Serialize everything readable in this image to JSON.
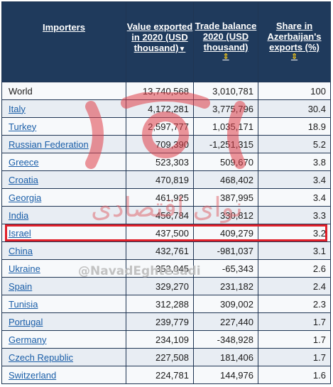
{
  "table": {
    "headers": {
      "importers": "Importers",
      "value": "Value exported in 2020 (USD thousand)",
      "value_arrow": "▼",
      "balance": "Trade balance 2020 (USD thousand)",
      "share": "Share in Azerbaijan's exports (%)"
    },
    "rows": [
      {
        "name": "World",
        "link": false,
        "value": "13,740,568",
        "balance": "3,010,781",
        "balance_negative": false,
        "share": "100"
      },
      {
        "name": "Italy",
        "link": true,
        "value": "4,172,281",
        "balance": "3,775,796",
        "balance_negative": false,
        "share": "30.4"
      },
      {
        "name": "Turkey",
        "link": true,
        "value": "2,597,777",
        "balance": "1,035,171",
        "balance_negative": false,
        "share": "18.9"
      },
      {
        "name": "Russian Federation",
        "link": true,
        "value": "709,390",
        "balance": "-1,251,315",
        "balance_negative": true,
        "share": "5.2"
      },
      {
        "name": "Greece",
        "link": true,
        "value": "523,303",
        "balance": "509,670",
        "balance_negative": false,
        "share": "3.8"
      },
      {
        "name": "Croatia",
        "link": true,
        "value": "470,819",
        "balance": "468,402",
        "balance_negative": false,
        "share": "3.4"
      },
      {
        "name": "Georgia",
        "link": true,
        "value": "461,925",
        "balance": "387,995",
        "balance_negative": false,
        "share": "3.4"
      },
      {
        "name": "India",
        "link": true,
        "value": "456,784",
        "balance": "330,812",
        "balance_negative": false,
        "share": "3.3"
      },
      {
        "name": "Israel",
        "link": true,
        "value": "437,500",
        "balance": "409,279",
        "balance_negative": false,
        "share": "3.2"
      },
      {
        "name": "China",
        "link": true,
        "value": "432,761",
        "balance": "-981,037",
        "balance_negative": true,
        "share": "3.1"
      },
      {
        "name": "Ukraine",
        "link": true,
        "value": "353,045",
        "balance": "-65,343",
        "balance_negative": true,
        "share": "2.6"
      },
      {
        "name": "Spain",
        "link": true,
        "value": "329,270",
        "balance": "231,182",
        "balance_negative": false,
        "share": "2.4"
      },
      {
        "name": "Tunisia",
        "link": true,
        "value": "312,288",
        "balance": "309,002",
        "balance_negative": false,
        "share": "2.3"
      },
      {
        "name": "Portugal",
        "link": true,
        "value": "239,779",
        "balance": "227,440",
        "balance_negative": false,
        "share": "1.7"
      },
      {
        "name": "Germany",
        "link": true,
        "value": "234,109",
        "balance": "-348,928",
        "balance_negative": true,
        "share": "1.7"
      },
      {
        "name": "Czech Republic",
        "link": true,
        "value": "227,508",
        "balance": "181,406",
        "balance_negative": false,
        "share": "1.7"
      },
      {
        "name": "Switzerland",
        "link": true,
        "value": "224,781",
        "balance": "144,976",
        "balance_negative": false,
        "share": "1.6"
      }
    ],
    "highlighted_row": "Israel"
  },
  "watermark": {
    "handle": "@NavadEghtesadi",
    "arabic": "نوای اقتصادی"
  },
  "colors": {
    "header_bg": "#1f3a5c",
    "header_sorted": "#f0c419",
    "link": "#1a5ea8",
    "negative": "#d9622b",
    "highlight": "#e0202a"
  }
}
